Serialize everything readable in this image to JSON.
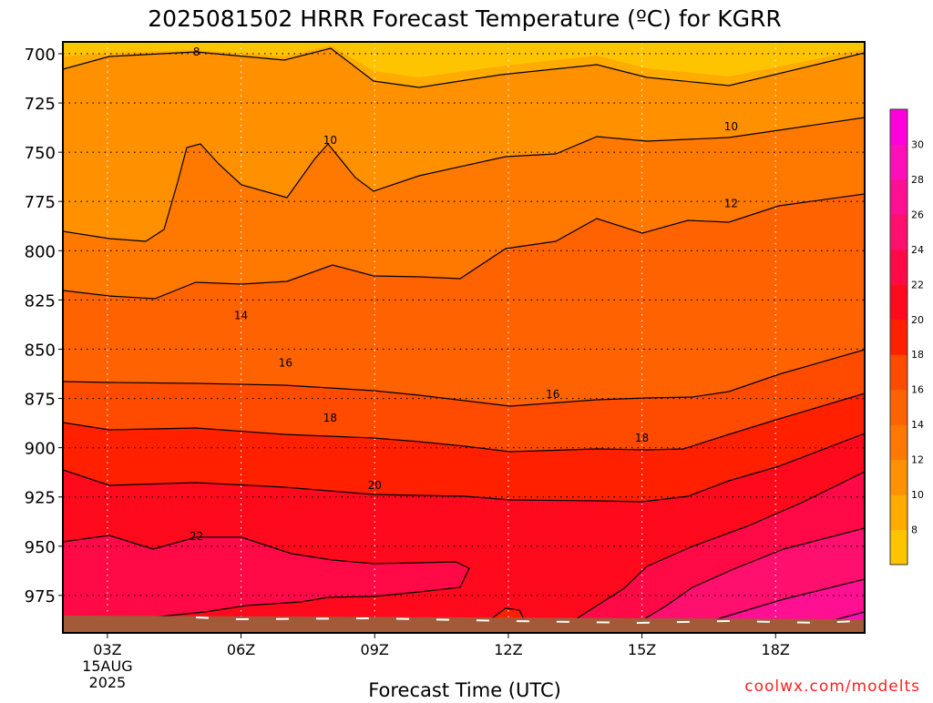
{
  "chart_data": {
    "type": "heatmap",
    "title": "2025081502 HRRR Forecast Temperature (ºC) for KGRR",
    "xlabel": "Forecast Time (UTC)",
    "ylabel": "",
    "y_scale": "pressure (hPa), inverted",
    "ylim": [
      994,
      694
    ],
    "y_ticks": [
      700,
      725,
      750,
      775,
      800,
      825,
      850,
      875,
      900,
      925,
      950,
      975
    ],
    "x_ticks": [
      "03Z",
      "06Z",
      "09Z",
      "12Z",
      "15Z",
      "18Z"
    ],
    "x_tick_hours": [
      3,
      6,
      9,
      12,
      15,
      18
    ],
    "xlim_hours": [
      2,
      20
    ],
    "x_first_tick_sublabels": [
      "15AUG",
      "2025"
    ],
    "grid": true,
    "contour_interval": 2,
    "contour_labels": [
      {
        "text": "8",
        "hour": 5.0,
        "p": 699
      },
      {
        "text": "10",
        "hour": 8.0,
        "p": 744
      },
      {
        "text": "10",
        "hour": 17.0,
        "p": 737
      },
      {
        "text": "12",
        "hour": 17.0,
        "p": 776
      },
      {
        "text": "14",
        "hour": 6.0,
        "p": 833
      },
      {
        "text": "16",
        "hour": 7.0,
        "p": 857
      },
      {
        "text": "16",
        "hour": 13.0,
        "p": 873
      },
      {
        "text": "18",
        "hour": 8.0,
        "p": 885
      },
      {
        "text": "18",
        "hour": 15.0,
        "p": 895
      },
      {
        "text": "20",
        "hour": 9.0,
        "p": 919
      },
      {
        "text": "22",
        "hour": 5.0,
        "p": 945
      }
    ],
    "colorbar": {
      "levels": [
        6,
        8,
        10,
        12,
        14,
        16,
        18,
        20,
        22,
        24,
        26,
        28,
        30,
        32
      ],
      "tick_labels": [
        "8",
        "10",
        "12",
        "14",
        "16",
        "18",
        "20",
        "22",
        "24",
        "26",
        "28",
        "30"
      ],
      "colors": [
        "#ffc400",
        "#ffab00",
        "#ff9100",
        "#ff7800",
        "#ff6200",
        "#ff4b00",
        "#ff2000",
        "#ff0a1c",
        "#ff0a46",
        "#ff0f6e",
        "#ff0f91",
        "#ff0fb8",
        "#ff00dc"
      ]
    },
    "surface_color": "#a35a38",
    "watermark": "coolwx.com/modelts"
  }
}
